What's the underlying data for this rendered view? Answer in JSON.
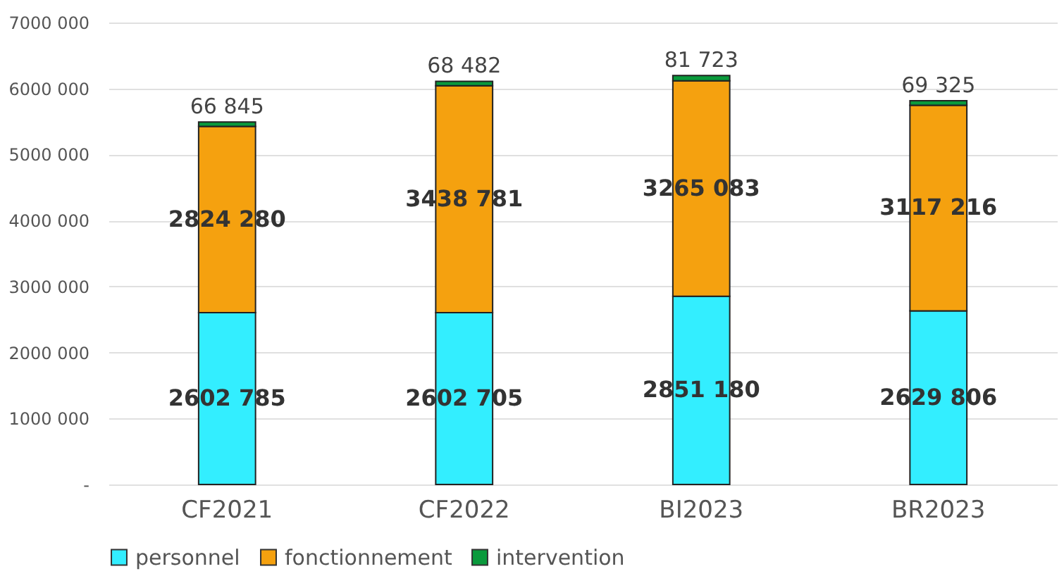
{
  "chart_data": {
    "type": "bar",
    "stacked": true,
    "categories": [
      "CF2021",
      "CF2022",
      "BI2023",
      "BR2023"
    ],
    "series": [
      {
        "name": "personnel",
        "color": "#33eeff",
        "values": [
          2602785,
          2602705,
          2851180,
          2629806
        ],
        "value_labels": [
          "2602 785",
          "2602 705",
          "2851 180",
          "2629 806"
        ]
      },
      {
        "name": "fonctionnement",
        "color": "#f5a10f",
        "values": [
          2824280,
          3438781,
          3265083,
          3117216
        ],
        "value_labels": [
          "2824 280",
          "3438 781",
          "3265 083",
          "3117 216"
        ]
      },
      {
        "name": "intervention",
        "color": "#0a9a3c",
        "values": [
          66845,
          68482,
          81723,
          69325
        ],
        "value_labels": [
          "66 845",
          "68 482",
          "81 723",
          "69 325"
        ]
      }
    ],
    "ylim": [
      0,
      7000000
    ],
    "yticks": [
      {
        "value": 0,
        "label": "-"
      },
      {
        "value": 1000000,
        "label": "1000 000"
      },
      {
        "value": 2000000,
        "label": "2000 000"
      },
      {
        "value": 3000000,
        "label": "3000 000"
      },
      {
        "value": 4000000,
        "label": "4000 000"
      },
      {
        "value": 5000000,
        "label": "5000 000"
      },
      {
        "value": 6000000,
        "label": "6000 000"
      },
      {
        "value": 7000000,
        "label": "7000 000"
      }
    ],
    "grid": "y",
    "legend": "bottom"
  }
}
